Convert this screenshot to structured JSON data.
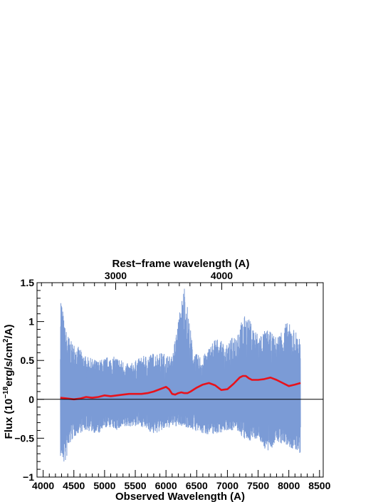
{
  "chart_data": {
    "type": "line",
    "xlabel": "Observed Wavelength (A)",
    "ylabel_prefix": "Flux (10",
    "ylabel_exp1": "−18",
    "ylabel_mid": "erg/s/cm",
    "ylabel_exp2": "2",
    "ylabel_suffix": "/A)",
    "top_axis_label": "Rest−frame wavelength (A)",
    "xlim": [
      3900,
      4560
    ],
    "ylim": [
      -1,
      1.5
    ],
    "x_ticks": [
      4000,
      4500,
      5000,
      5500,
      6000,
      6500,
      7000,
      7500,
      8000,
      8500
    ],
    "x_tick_labels": [
      "4000",
      "4500",
      "5000",
      "5500",
      "6000",
      "6500",
      "7000",
      "7500",
      "8000",
      "8500"
    ],
    "y_ticks": [
      -1,
      -0.5,
      0,
      0.5,
      1,
      1.5
    ],
    "y_tick_labels": [
      "−1",
      "−0.5",
      "0",
      "0.5",
      "1",
      "1.5"
    ],
    "top_ticks": [
      3000,
      4000
    ],
    "top_tick_labels": [
      "3000",
      "4000"
    ],
    "series": [
      {
        "role": "spectrum",
        "color": "#7b9bd6",
        "x_range": [
          4280,
          8190
        ],
        "envelope": [
          [
            4280,
            -0.75,
            1.45
          ],
          [
            4350,
            -0.85,
            0.95
          ],
          [
            4450,
            -0.55,
            0.75
          ],
          [
            4550,
            -0.45,
            0.7
          ],
          [
            4700,
            -0.4,
            0.55
          ],
          [
            4900,
            -0.45,
            0.5
          ],
          [
            5050,
            -0.35,
            0.55
          ],
          [
            5200,
            -0.4,
            0.55
          ],
          [
            5400,
            -0.35,
            0.45
          ],
          [
            5600,
            -0.35,
            0.55
          ],
          [
            5800,
            -0.45,
            0.6
          ],
          [
            5950,
            -0.4,
            0.6
          ],
          [
            6100,
            -0.35,
            0.55
          ],
          [
            6300,
            -0.35,
            1.5
          ],
          [
            6450,
            -0.4,
            0.6
          ],
          [
            6600,
            -0.45,
            0.55
          ],
          [
            6800,
            -0.45,
            0.8
          ],
          [
            7000,
            -0.4,
            0.7
          ],
          [
            7150,
            -0.4,
            0.9
          ],
          [
            7300,
            -0.55,
            1.1
          ],
          [
            7500,
            -0.5,
            0.85
          ],
          [
            7650,
            -0.7,
            0.9
          ],
          [
            7800,
            -0.55,
            0.8
          ],
          [
            7950,
            -0.6,
            1.0
          ],
          [
            8050,
            -0.65,
            0.95
          ],
          [
            8190,
            -0.7,
            0.8
          ]
        ]
      },
      {
        "role": "smoothed",
        "color": "#e8121b",
        "x": [
          4280,
          4400,
          4500,
          4600,
          4700,
          4800,
          4900,
          5000,
          5100,
          5200,
          5300,
          5400,
          5500,
          5600,
          5700,
          5800,
          5900,
          6000,
          6050,
          6100,
          6150,
          6200,
          6250,
          6300,
          6350,
          6400,
          6500,
          6600,
          6700,
          6800,
          6900,
          7000,
          7100,
          7200,
          7250,
          7300,
          7350,
          7400,
          7500,
          7600,
          7700,
          7800,
          7900,
          8000,
          8100,
          8190
        ],
        "y": [
          0.02,
          0.01,
          0.0,
          0.01,
          0.03,
          0.02,
          0.03,
          0.05,
          0.04,
          0.05,
          0.06,
          0.07,
          0.07,
          0.07,
          0.08,
          0.1,
          0.13,
          0.16,
          0.13,
          0.07,
          0.06,
          0.08,
          0.09,
          0.08,
          0.08,
          0.1,
          0.15,
          0.19,
          0.21,
          0.18,
          0.12,
          0.13,
          0.2,
          0.28,
          0.3,
          0.3,
          0.27,
          0.25,
          0.25,
          0.26,
          0.28,
          0.25,
          0.21,
          0.17,
          0.19,
          0.21
        ]
      }
    ]
  }
}
